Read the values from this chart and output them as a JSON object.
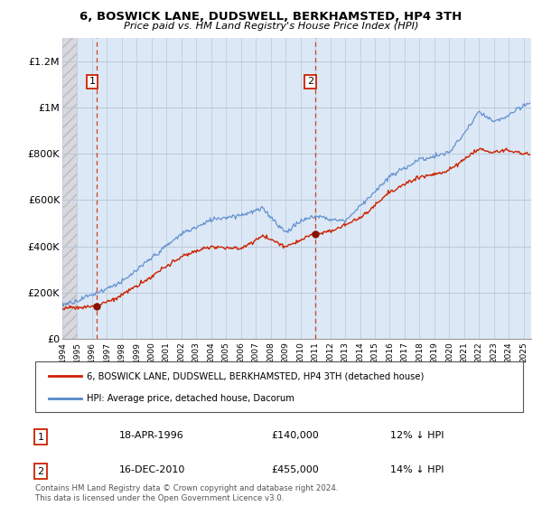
{
  "title": "6, BOSWICK LANE, DUDSWELL, BERKHAMSTED, HP4 3TH",
  "subtitle": "Price paid vs. HM Land Registry's House Price Index (HPI)",
  "legend_line1": "6, BOSWICK LANE, DUDSWELL, BERKHAMSTED, HP4 3TH (detached house)",
  "legend_line2": "HPI: Average price, detached house, Dacorum",
  "sale1_label": "1",
  "sale1_date": "18-APR-1996",
  "sale1_price": "£140,000",
  "sale1_hpi": "12% ↓ HPI",
  "sale1_year": 1996.3,
  "sale1_value": 140000,
  "sale2_label": "2",
  "sale2_date": "16-DEC-2010",
  "sale2_price": "£455,000",
  "sale2_hpi": "14% ↓ HPI",
  "sale2_year": 2010.97,
  "sale2_value": 455000,
  "hpi_line_color": "#5588cc",
  "sale_line_color": "#cc2200",
  "sale_dot_color": "#881100",
  "background_plot": "#dce8f5",
  "background_hatch_face": "#d8d8e0",
  "grid_color": "#b8c8d8",
  "ylim_min": 0,
  "ylim_max": 1300000,
  "xlim_min": 1994.0,
  "xlim_max": 2025.5,
  "yticks": [
    0,
    200000,
    400000,
    600000,
    800000,
    1000000,
    1200000
  ],
  "ytick_labels": [
    "£0",
    "£200K",
    "£400K",
    "£600K",
    "£800K",
    "£1M",
    "£1.2M"
  ],
  "xtick_years": [
    1994,
    1995,
    1996,
    1997,
    1998,
    1999,
    2000,
    2001,
    2002,
    2003,
    2004,
    2005,
    2006,
    2007,
    2008,
    2009,
    2010,
    2011,
    2012,
    2013,
    2014,
    2015,
    2016,
    2017,
    2018,
    2019,
    2020,
    2021,
    2022,
    2023,
    2024,
    2025
  ],
  "footnote": "Contains HM Land Registry data © Crown copyright and database right 2024.\nThis data is licensed under the Open Government Licence v3.0."
}
